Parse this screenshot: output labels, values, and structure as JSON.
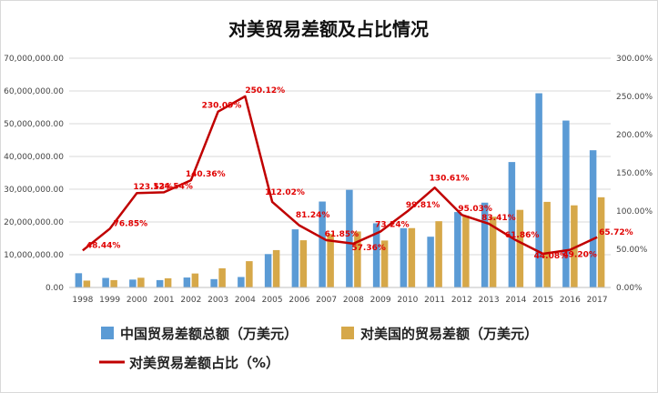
{
  "chart_data": {
    "type": "bar",
    "title": "对美贸易差额及占比情况",
    "categories": [
      "1998",
      "1999",
      "2000",
      "2001",
      "2002",
      "2003",
      "2004",
      "2005",
      "2006",
      "2007",
      "2008",
      "2009",
      "2010",
      "2011",
      "2012",
      "2013",
      "2014",
      "2015",
      "2016",
      "2017"
    ],
    "series": [
      {
        "name": "中国贸易差额总额（万美元）",
        "kind": "bar",
        "axis": "left",
        "color": "#5b9bd5",
        "values": [
          4350000,
          2920000,
          2410000,
          2250000,
          3040000,
          2550000,
          3200000,
          10200000,
          17750000,
          26240000,
          29810000,
          19600000,
          18100000,
          15500000,
          23030000,
          25900000,
          38300000,
          59300000,
          50960000,
          41900000
        ]
      },
      {
        "name": "对美国的贸易差额（万美元）",
        "kind": "bar",
        "axis": "left",
        "color": "#d6a849",
        "values": [
          2100000,
          2250000,
          2970000,
          2810000,
          4270000,
          5860000,
          8030000,
          11410000,
          14420000,
          16320000,
          17100000,
          14340000,
          18130000,
          20240000,
          21890000,
          21610000,
          23700000,
          26140000,
          25080000,
          27540000
        ]
      },
      {
        "name": "对美贸易差额占比（%）",
        "kind": "line",
        "axis": "right",
        "color": "#c00000",
        "values": [
          48.44,
          76.85,
          123.53,
          124.54,
          140.36,
          230.09,
          250.12,
          112.02,
          81.24,
          61.85,
          57.36,
          73.24,
          99.81,
          130.61,
          95.03,
          83.41,
          61.86,
          44.08,
          49.2,
          65.72
        ],
        "labels": [
          "48.44%",
          "76.85%",
          "123.53%",
          "124.54%",
          "140.36%",
          "230.09%",
          "250.12%",
          "112.02%",
          "81.24%",
          "61.85%",
          "57.36%",
          "73.24%",
          "99.81%",
          "130.61%",
          "95.03%",
          "83.41%",
          "61.86%",
          "44.08%",
          "49.20%",
          "65.72%"
        ]
      }
    ],
    "y_left": {
      "min": 0,
      "max": 70000000,
      "ticks": [
        0,
        10000000,
        20000000,
        30000000,
        40000000,
        50000000,
        60000000,
        70000000
      ],
      "tick_labels": [
        "0.00",
        "10,000,000.00",
        "20,000,000.00",
        "30,000,000.00",
        "40,000,000.00",
        "50,000,000.00",
        "60,000,000.00",
        "70,000,000.00"
      ]
    },
    "y_right": {
      "min": 0,
      "max": 300,
      "ticks": [
        0,
        50,
        100,
        150,
        200,
        250,
        300
      ],
      "tick_labels": [
        "0.00%",
        "50.00%",
        "100.00%",
        "150.00%",
        "200.00%",
        "250.00%",
        "300.00%"
      ]
    },
    "grid": true,
    "legend_position": "bottom"
  }
}
